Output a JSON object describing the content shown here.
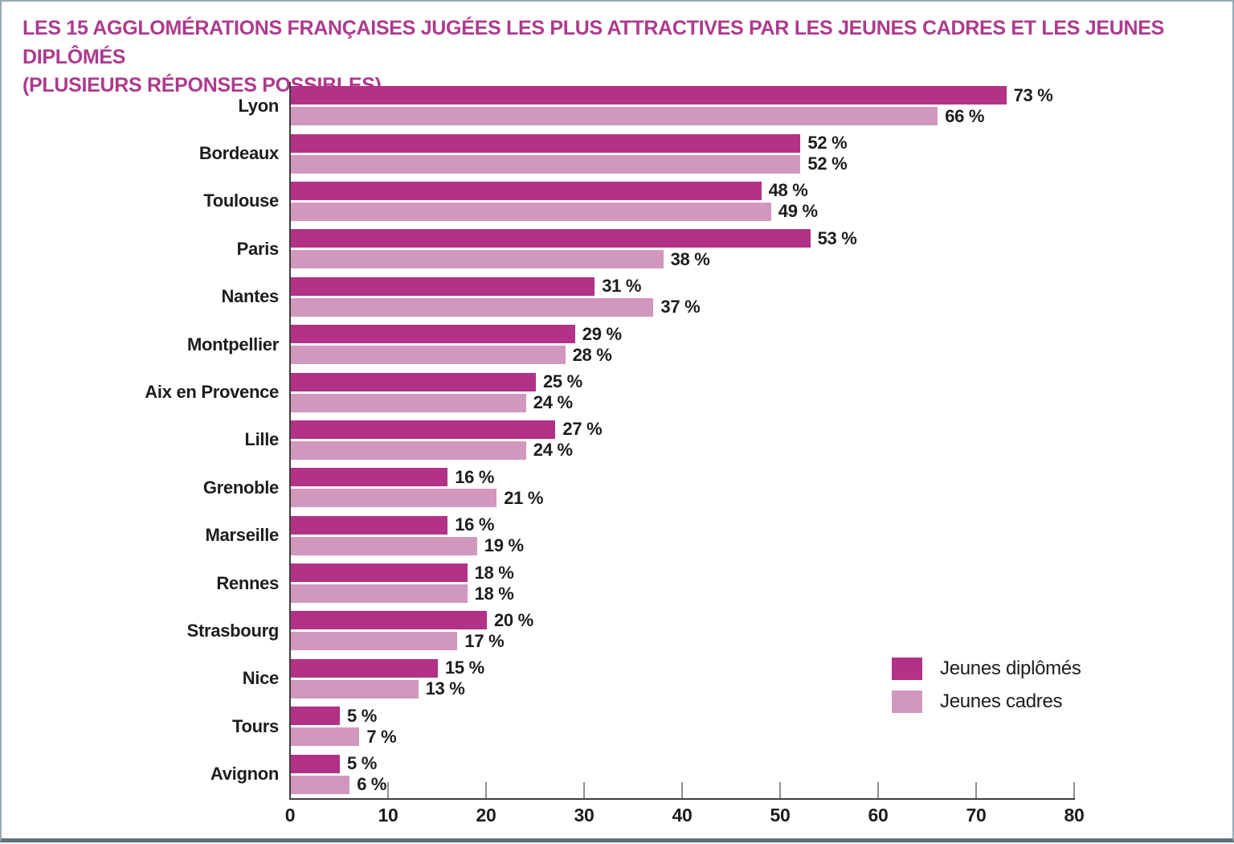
{
  "frame": {
    "border_color": "#97a9b3",
    "border_bottom_color": "#5e717b",
    "background": "#ffffff"
  },
  "title": {
    "line1": "LES 15 AGGLOMÉRATIONS FRANÇAISES JUGÉES LES PLUS ATTRACTIVES PAR LES JEUNES CADRES ET LES JEUNES DIPLÔMÉS",
    "line2": "(PLUSIEURS RÉPONSES POSSIBLES)",
    "color": "#ad3a8e"
  },
  "chart_data": {
    "type": "bar",
    "orientation": "horizontal",
    "title": "LES 15 AGGLOMÉRATIONS FRANÇAISES JUGÉES LES PLUS ATTRACTIVES PAR LES JEUNES CADRES ET LES JEUNES DIPLÔMÉS (PLUSIEURS RÉPONSES POSSIBLES)",
    "categories": [
      "Lyon",
      "Bordeaux",
      "Toulouse",
      "Paris",
      "Nantes",
      "Montpellier",
      "Aix en Provence",
      "Lille",
      "Grenoble",
      "Marseille",
      "Rennes",
      "Strasbourg",
      "Nice",
      "Tours",
      "Avignon"
    ],
    "series": [
      {
        "name": "Jeunes diplômés",
        "color": "#b13287",
        "values": [
          73,
          52,
          48,
          53,
          31,
          29,
          25,
          27,
          16,
          16,
          18,
          20,
          15,
          5,
          5
        ]
      },
      {
        "name": "Jeunes cadres",
        "color": "#d297bd",
        "values": [
          66,
          52,
          49,
          38,
          37,
          28,
          24,
          24,
          21,
          19,
          18,
          17,
          13,
          7,
          6
        ]
      }
    ],
    "value_suffix": " %",
    "xlabel": "",
    "ylabel": "",
    "xlim": [
      0,
      80
    ],
    "x_ticks": [
      0,
      10,
      20,
      30,
      40,
      50,
      60,
      70,
      80
    ],
    "grid": false,
    "legend_position": "right-lower",
    "axis_color": "#3d3d3d",
    "tick_color": "#8f8f8f",
    "text_color": "#1d1d1d"
  }
}
